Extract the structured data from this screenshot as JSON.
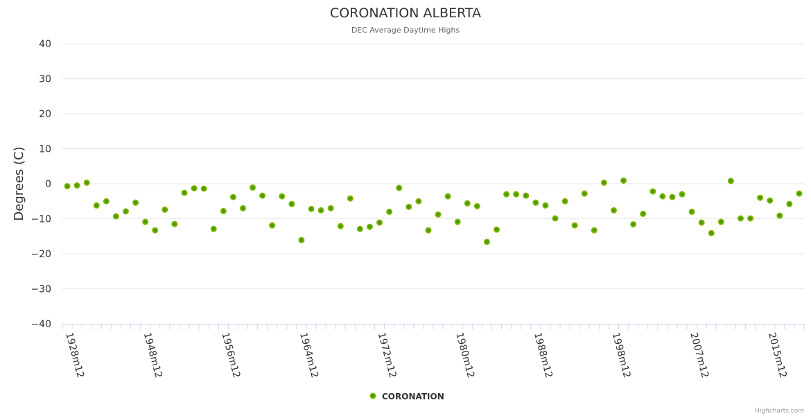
{
  "chart_data": {
    "type": "scatter",
    "title": "CORONATION ALBERTA",
    "subtitle": "DEC Average Daytime Highs",
    "xlabel": "",
    "ylabel": "Degrees (C)",
    "ylim": [
      -40,
      40
    ],
    "yticks": [
      40,
      30,
      20,
      10,
      0,
      -10,
      -20,
      -30,
      -40
    ],
    "ytick_labels": [
      "40",
      "30",
      "20",
      "10",
      "0",
      "−10",
      "−20",
      "−30",
      "−40"
    ],
    "grid": true,
    "legend_position": "bottom-center",
    "categories": [
      "1928m12",
      "1941m12",
      "1942m12",
      "1943m12",
      "1944m12",
      "1945m12",
      "1946m12",
      "1947m12",
      "1948m12",
      "1949m12",
      "1950m12",
      "1951m12",
      "1952m12",
      "1953m12",
      "1954m12",
      "1955m12",
      "1956m12",
      "1957m12",
      "1958m12",
      "1959m12",
      "1960m12",
      "1961m12",
      "1962m12",
      "1963m12",
      "1964m12",
      "1965m12",
      "1966m12",
      "1967m12",
      "1968m12",
      "1969m12",
      "1970m12",
      "1971m12",
      "1972m12",
      "1973m12",
      "1974m12",
      "1975m12",
      "1976m12",
      "1977m12",
      "1978m12",
      "1979m12",
      "1980m12",
      "1981m12",
      "1982m12",
      "1983m12",
      "1984m12",
      "1985m12",
      "1986m12",
      "1987m12",
      "1988m12",
      "1989m12",
      "1990m12",
      "1991m12",
      "1992m12",
      "1993m12",
      "1995m12",
      "1996m12",
      "1998m12",
      "1999m12",
      "2000m12",
      "2001m12",
      "2002m12",
      "2003m12",
      "2004m12",
      "2006m12",
      "2007m12",
      "2008m12",
      "2009m12",
      "2010m12",
      "2011m12",
      "2012m12",
      "2013m12",
      "2014m12",
      "2015m12",
      "2016m12",
      "2017m12",
      "2018m12"
    ],
    "tick_label_indices": [
      0,
      8,
      16,
      24,
      32,
      40,
      48,
      56,
      64,
      72
    ],
    "series": [
      {
        "name": "CORONATION",
        "color": "#7cb500",
        "values": [
          -0.7,
          -0.5,
          0.3,
          -6.2,
          -5.0,
          -9.3,
          -7.9,
          -5.4,
          -10.9,
          -13.3,
          -7.4,
          -11.5,
          -2.6,
          -1.3,
          -1.4,
          -12.9,
          -7.8,
          -3.8,
          -7.0,
          -1.1,
          -3.4,
          -11.9,
          -3.6,
          -5.8,
          -16.1,
          -7.2,
          -7.6,
          -7.0,
          -12.1,
          -4.2,
          -12.9,
          -12.3,
          -11.1,
          -8.0,
          -1.2,
          -6.6,
          -5.0,
          -13.3,
          -8.8,
          -3.6,
          -10.9,
          -5.6,
          -6.4,
          -16.6,
          -13.1,
          -3.0,
          -3.0,
          -3.4,
          -5.4,
          -6.2,
          -9.9,
          -5.0,
          -11.9,
          -2.8,
          -13.3,
          0.3,
          -7.6,
          0.9,
          -11.6,
          -8.6,
          -2.2,
          -3.6,
          -3.8,
          -3.0,
          -8.0,
          -11.1,
          -14.1,
          -10.9,
          0.8,
          -9.9,
          -9.9,
          -4.0,
          -4.8,
          -9.1,
          -5.8,
          -2.8
        ]
      }
    ]
  },
  "credits": "Highcharts.com"
}
